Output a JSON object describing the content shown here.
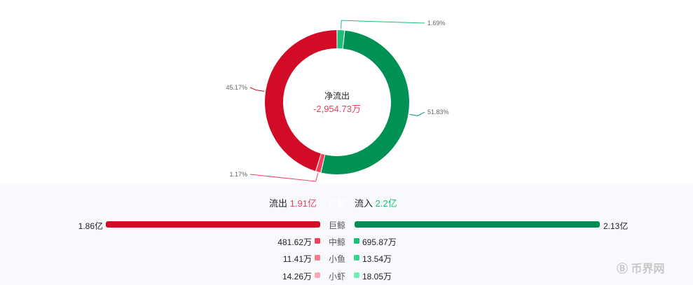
{
  "chart_data": {
    "type": "pie",
    "title": "净流出",
    "center_value": "-2,954.73万",
    "slices": [
      {
        "label": "1.69%",
        "value": 1.69,
        "color": "#1fbf78"
      },
      {
        "label": "51.83%",
        "value": 51.83,
        "color": "#009155"
      },
      {
        "label": "1.17%",
        "value": 1.17,
        "color": "#f0405a"
      },
      {
        "label": "45.17%",
        "value": 45.17,
        "color": "#d20b26"
      }
    ]
  },
  "summary": {
    "out_label": "流出",
    "out_value": "1.91亿",
    "mid_label": "巨鲸",
    "in_label": "流入",
    "in_value": "2.2亿"
  },
  "rows": [
    {
      "cat": "巨鲸",
      "out": "1.86亿",
      "in": "2.13亿",
      "out_frac": 1,
      "in_frac": 1,
      "out_color": "#d20b26",
      "in_color": "#008c52"
    },
    {
      "cat": "中鲸",
      "out": "481.62万",
      "in": "695.87万",
      "out_color": "#f0405a",
      "in_color": "#14c274"
    },
    {
      "cat": "小鱼",
      "out": "11.41万",
      "in": "13.54万",
      "out_color": "#f57a8a",
      "in_color": "#2fd98f"
    },
    {
      "cat": "小虾",
      "out": "14.26万",
      "in": "18.05万",
      "out_color": "#f7a8b2",
      "in_color": "#6ef0b4"
    }
  ],
  "watermark": "币界网"
}
